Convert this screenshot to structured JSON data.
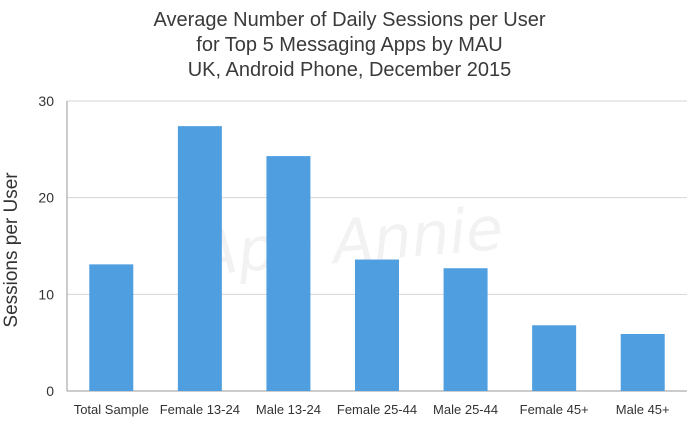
{
  "title_lines": [
    "Average Number of Daily Sessions per User",
    "for Top 5 Messaging Apps by MAU",
    "UK, Android Phone, December 2015"
  ],
  "watermark": "App Annie",
  "colors": {
    "bar": "#4f9fe0",
    "grid": "#d6d6d6",
    "axis": "#9a9a9a",
    "text": "#333333"
  },
  "chart_data": {
    "type": "bar",
    "title": "Average Number of Daily Sessions per User for Top 5 Messaging Apps by MAU UK, Android Phone, December 2015",
    "categories": [
      "Total Sample",
      "Female 13-24",
      "Male 13-24",
      "Female 25-44",
      "Male 25-44",
      "Female 45+",
      "Male 45+"
    ],
    "values": [
      13.1,
      27.4,
      24.3,
      13.6,
      12.7,
      6.8,
      5.9
    ],
    "xlabel": "",
    "ylabel": "Sessions per User",
    "ylim": [
      0,
      30
    ],
    "yticks": [
      0,
      10,
      20,
      30
    ],
    "grid": true
  }
}
